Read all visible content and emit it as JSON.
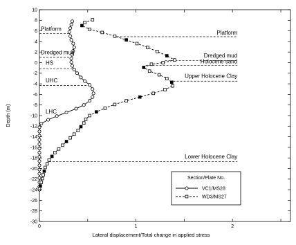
{
  "chart_data": {
    "type": "line",
    "title": "",
    "xlabel": "Lateral displacement/Total change in  applied stress",
    "ylabel": "Depth (m)",
    "xlim": [
      0,
      2.6
    ],
    "ylim": [
      -30,
      10
    ],
    "x_ticks": [
      "0",
      "1",
      "2"
    ],
    "x_tick_values": [
      0,
      1,
      2
    ],
    "y_ticks": [
      "10",
      "8",
      "6",
      "4",
      "2",
      "0",
      "-2",
      "-4",
      "-6",
      "-8",
      "-10",
      "-12",
      "-14",
      "-16",
      "-18",
      "-20",
      "-22",
      "-24",
      "-26",
      "-28",
      "-30"
    ],
    "grid": false,
    "legend": {
      "title": "Section/Plate No.",
      "placement": "bottom-right",
      "entries": [
        "VC1/MS28",
        "WD3/MS27"
      ]
    },
    "series": [
      {
        "name": "VC1/MS28",
        "style": "solid-circle-markers",
        "points": [
          [
            0.34,
            7.8
          ],
          [
            0.33,
            7.2
          ],
          [
            0.32,
            6.5
          ],
          [
            0.31,
            5.8
          ],
          [
            0.32,
            5.0
          ],
          [
            0.33,
            4.3
          ],
          [
            0.35,
            3.6
          ],
          [
            0.36,
            2.9
          ],
          [
            0.35,
            2.2
          ],
          [
            0.34,
            1.5
          ],
          [
            0.33,
            0.8
          ],
          [
            0.33,
            0.1
          ],
          [
            0.34,
            -0.6
          ],
          [
            0.36,
            -1.3
          ],
          [
            0.39,
            -2.0
          ],
          [
            0.43,
            -2.8
          ],
          [
            0.47,
            -3.5
          ],
          [
            0.52,
            -4.2
          ],
          [
            0.55,
            -5.0
          ],
          [
            0.56,
            -5.8
          ],
          [
            0.55,
            -6.5
          ],
          [
            0.52,
            -7.2
          ],
          [
            0.46,
            -8.0
          ],
          [
            0.38,
            -8.7
          ],
          [
            0.28,
            -9.4
          ],
          [
            0.18,
            -10.1
          ],
          [
            0.09,
            -10.8
          ],
          [
            0.02,
            -11.5
          ],
          [
            0.0,
            -12.2
          ],
          [
            0.0,
            -13.0
          ],
          [
            0.0,
            -13.8
          ],
          [
            0.0,
            -14.6
          ],
          [
            0.0,
            -15.4
          ],
          [
            0.0,
            -16.2
          ],
          [
            0.0,
            -17.0
          ],
          [
            0.0,
            -17.8
          ],
          [
            0.0,
            -18.6
          ],
          [
            0.0,
            -19.4
          ],
          [
            0.0,
            -20.2
          ],
          [
            0.0,
            -21.0
          ],
          [
            0.0,
            -21.8
          ],
          [
            0.0,
            -22.6
          ],
          [
            0.0,
            -23.4
          ],
          [
            0.0,
            -24.0
          ]
        ]
      },
      {
        "name": "WD3/MS27",
        "style": "dashed-square-markers",
        "points": [
          [
            0.55,
            8.1
          ],
          [
            0.47,
            7.6
          ],
          [
            0.44,
            7.0
          ],
          [
            0.52,
            6.3
          ],
          [
            0.65,
            5.7
          ],
          [
            0.78,
            5.0
          ],
          [
            0.9,
            4.3
          ],
          [
            1.01,
            3.6
          ],
          [
            1.12,
            2.9
          ],
          [
            1.22,
            2.1
          ],
          [
            1.32,
            1.3
          ],
          [
            1.4,
            0.5
          ],
          [
            1.28,
            0.0
          ],
          [
            1.16,
            -0.3
          ],
          [
            1.08,
            -0.9
          ],
          [
            1.14,
            -1.6
          ],
          [
            1.24,
            -2.3
          ],
          [
            1.32,
            -3.0
          ],
          [
            1.37,
            -3.7
          ],
          [
            1.38,
            -4.4
          ],
          [
            1.3,
            -5.1
          ],
          [
            1.18,
            -5.8
          ],
          [
            1.04,
            -6.5
          ],
          [
            0.9,
            -7.2
          ],
          [
            0.78,
            -7.9
          ],
          [
            0.68,
            -8.6
          ],
          [
            0.59,
            -9.3
          ],
          [
            0.52,
            -10.0
          ],
          [
            0.48,
            -10.7
          ],
          [
            0.46,
            -11.4
          ],
          [
            0.43,
            -12.1
          ],
          [
            0.4,
            -12.8
          ],
          [
            0.36,
            -13.5
          ],
          [
            0.32,
            -14.2
          ],
          [
            0.28,
            -14.9
          ],
          [
            0.24,
            -15.6
          ],
          [
            0.2,
            -16.3
          ],
          [
            0.16,
            -17.0
          ],
          [
            0.13,
            -17.7
          ],
          [
            0.1,
            -18.4
          ],
          [
            0.08,
            -19.1
          ],
          [
            0.06,
            -19.8
          ],
          [
            0.05,
            -20.5
          ],
          [
            0.04,
            -21.2
          ],
          [
            0.03,
            -21.9
          ],
          [
            0.02,
            -22.6
          ],
          [
            0.01,
            -23.3
          ],
          [
            0.0,
            -23.8
          ]
        ]
      }
    ],
    "boundaries": [
      {
        "name": "platform-left",
        "depth": 5.5,
        "x0": 0.0,
        "x1": 0.32
      },
      {
        "name": "dredged-mud-left",
        "depth": 1.0,
        "x0": 0.0,
        "x1": 0.34
      },
      {
        "name": "hs-left",
        "depth": -1.2,
        "x0": 0.0,
        "x1": 0.36
      },
      {
        "name": "uhc-left",
        "depth": -4.3,
        "x0": 0.0,
        "x1": 0.52
      },
      {
        "name": "platform-right",
        "depth": 4.9,
        "x0": 0.8,
        "x1": 2.05
      },
      {
        "name": "dredged-mud-right",
        "depth": 0.4,
        "x0": 1.3,
        "x1": 2.05
      },
      {
        "name": "holocene-sand-right",
        "depth": -0.5,
        "x0": 1.1,
        "x1": 2.05
      },
      {
        "name": "upper-holocene-clay-right",
        "depth": -3.5,
        "x0": 1.35,
        "x1": 2.05
      },
      {
        "name": "lower-holocene-clay",
        "depth": -18.7,
        "x0": 0.1,
        "x1": 2.05
      }
    ],
    "annotations": [
      {
        "name": "label-platform-left",
        "text": "Platform",
        "x": 0.0,
        "y": 6.0,
        "anchor": "start"
      },
      {
        "name": "label-dredged-mud-left",
        "text": "Dredged mud",
        "x": 0.0,
        "y": 1.6,
        "anchor": "start"
      },
      {
        "name": "label-hs",
        "text": "HS",
        "x": 0.05,
        "y": -0.4,
        "anchor": "start"
      },
      {
        "name": "label-uhc",
        "text": "UHC",
        "x": 0.05,
        "y": -3.7,
        "anchor": "start"
      },
      {
        "name": "label-lhc",
        "text": "LHC",
        "x": 0.05,
        "y": -9.6,
        "anchor": "start"
      },
      {
        "name": "label-platform-right",
        "text": "Platform",
        "x": 2.05,
        "y": 5.3,
        "anchor": "end"
      },
      {
        "name": "label-dredged-mud-right",
        "text": "Dredged mud",
        "x": 2.05,
        "y": 1.0,
        "anchor": "end"
      },
      {
        "name": "label-holocene-sand",
        "text": "Holocene sand",
        "x": 2.05,
        "y": -0.1,
        "anchor": "end"
      },
      {
        "name": "label-upper-holocene-clay",
        "text": "Upper Holocene Clay",
        "x": 2.05,
        "y": -2.9,
        "anchor": "end"
      },
      {
        "name": "label-lower-holocene-clay",
        "text": "Lower Holocene Clay",
        "x": 2.05,
        "y": -18.1,
        "anchor": "end"
      }
    ]
  }
}
